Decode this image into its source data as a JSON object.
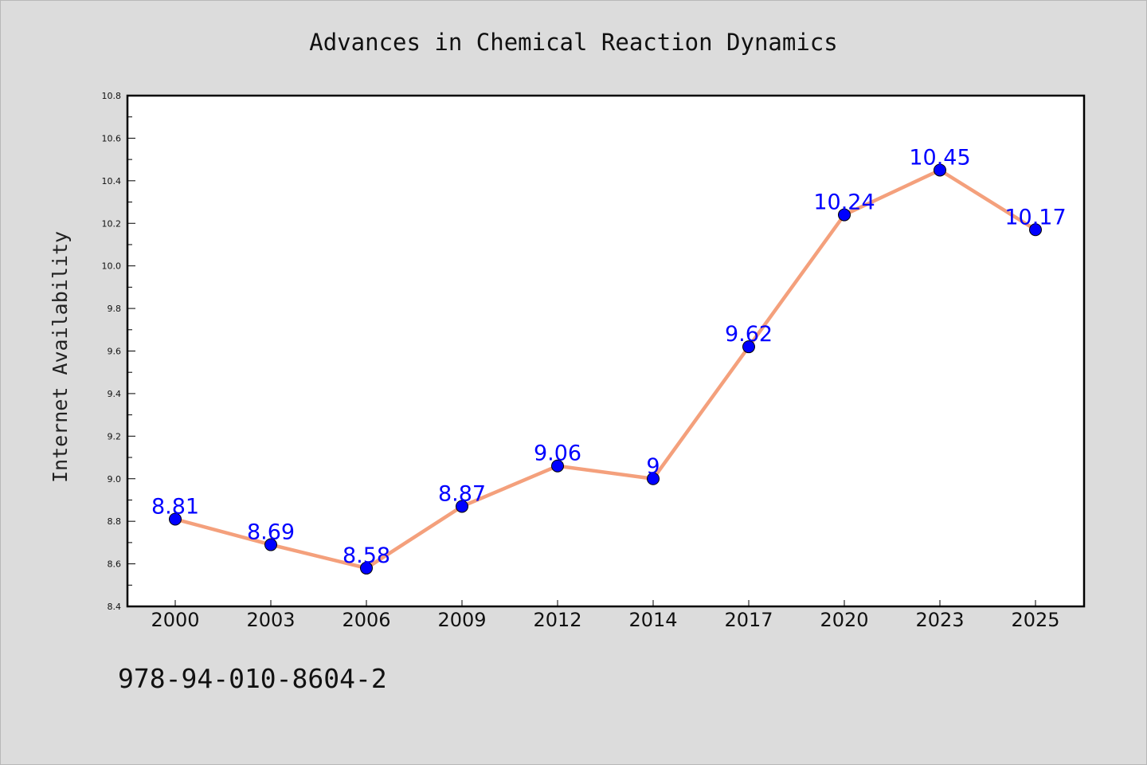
{
  "chart_data": {
    "type": "line",
    "title": "Advances in Chemical Reaction Dynamics",
    "xlabel": "",
    "ylabel": "Internet Availability",
    "categories": [
      "2000",
      "2003",
      "2006",
      "2009",
      "2012",
      "2014",
      "2017",
      "2020",
      "2023",
      "2025"
    ],
    "series": [
      {
        "values": [
          8.81,
          8.69,
          8.58,
          8.87,
          9.06,
          9.0,
          9.62,
          10.24,
          10.45,
          10.17
        ],
        "data_labels": [
          "8.81",
          "8.69",
          "8.58",
          "8.87",
          "9.06",
          "9",
          "9.62",
          "10.24",
          "10.45",
          "10.17"
        ],
        "line_color": "#f4a07c",
        "marker_color": "#0000ff"
      }
    ],
    "ylim": [
      8.4,
      10.8
    ],
    "yticks": [
      "8.4",
      "8.6",
      "8.8",
      "9.0",
      "9.2",
      "9.4",
      "9.6",
      "9.8",
      "10.0",
      "10.2",
      "10.4",
      "10.6",
      "10.8"
    ],
    "grid": false,
    "legend": "none"
  },
  "footer": {
    "isbn": "978-94-010-8604-2"
  },
  "colors": {
    "background": "#dcdcdc",
    "plot_background": "#ffffff",
    "line": "#f4a07c",
    "marker": "#0000ff",
    "data_label": "#0000ff"
  }
}
